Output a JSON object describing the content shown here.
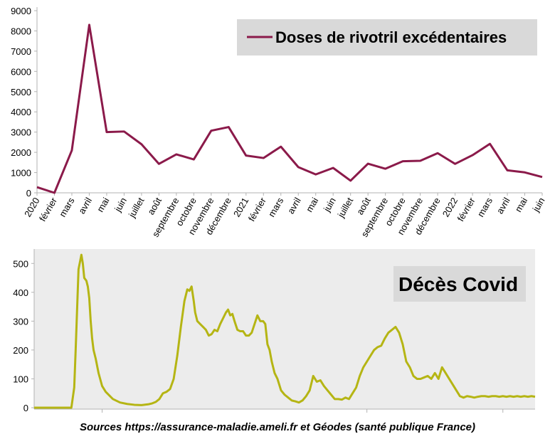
{
  "chart_data": [
    {
      "type": "line",
      "title": "",
      "xlabel": "",
      "ylabel": "",
      "ylim": [
        0,
        9000
      ],
      "yticks": [
        0,
        1000,
        2000,
        3000,
        4000,
        5000,
        6000,
        7000,
        8000,
        9000
      ],
      "grid": false,
      "legend_position": "top-right",
      "categories": [
        "2020",
        "février",
        "mars",
        "avril",
        "mai",
        "juin",
        "juillet",
        "août",
        "septembre",
        "octobre",
        "novembre",
        "décembre",
        "2021",
        "février",
        "mars",
        "avril",
        "mai",
        "juin",
        "juillet",
        "août",
        "septembre",
        "octobre",
        "novembre",
        "décembre",
        "2022",
        "février",
        "mars",
        "avril",
        "mai",
        "juin"
      ],
      "series": [
        {
          "name": "Doses de rivotril excédentaires",
          "color": "#8b1a4a",
          "values": [
            280,
            0,
            2100,
            8300,
            3000,
            3030,
            2400,
            1430,
            1900,
            1650,
            3070,
            3250,
            1840,
            1720,
            2280,
            1270,
            910,
            1230,
            600,
            1440,
            1190,
            1560,
            1580,
            1960,
            1430,
            1860,
            2420,
            1110,
            1010,
            780
          ]
        }
      ]
    },
    {
      "type": "line",
      "title": "",
      "xlabel": "",
      "ylabel": "",
      "ylim": [
        0,
        550
      ],
      "yticks": [
        0,
        100,
        200,
        300,
        400,
        500
      ],
      "grid": false,
      "legend_position": "top-right",
      "series": [
        {
          "name": "Décès Covid",
          "color": "#b5b514",
          "x": [
            0,
            20,
            40,
            52,
            56,
            58,
            62,
            66,
            68,
            70,
            73,
            75,
            77,
            79,
            81,
            83,
            86,
            90,
            95,
            100,
            110,
            120,
            130,
            140,
            150,
            160,
            165,
            170,
            175,
            180,
            185,
            190,
            195,
            200,
            205,
            210,
            214,
            217,
            220,
            223,
            225,
            228,
            232,
            236,
            240,
            244,
            248,
            252,
            256,
            260,
            264,
            268,
            271,
            274,
            277,
            280,
            284,
            288,
            292,
            296,
            300,
            304,
            308,
            312,
            316,
            320,
            323,
            326,
            329,
            332,
            336,
            340,
            345,
            350,
            355,
            360,
            365,
            370,
            375,
            380,
            385,
            390,
            395,
            400,
            405,
            410,
            415,
            420,
            425,
            430,
            435,
            440,
            445,
            450,
            455,
            460,
            465,
            470,
            475,
            480,
            485,
            490,
            495,
            500,
            505,
            510,
            515,
            520,
            525,
            530,
            535,
            540,
            545,
            550,
            555,
            560,
            565,
            570,
            575,
            580,
            585,
            590,
            595,
            600,
            605,
            610,
            615,
            620,
            625,
            630,
            635,
            640,
            645,
            650,
            655,
            660,
            665,
            670,
            675,
            680,
            685,
            690,
            695,
            700
          ],
          "values": [
            0,
            0,
            0,
            0,
            70,
            200,
            480,
            530,
            500,
            450,
            440,
            420,
            380,
            300,
            240,
            200,
            170,
            120,
            75,
            55,
            30,
            18,
            13,
            10,
            9,
            12,
            15,
            20,
            30,
            50,
            55,
            65,
            100,
            180,
            280,
            370,
            410,
            405,
            420,
            370,
            330,
            300,
            290,
            280,
            270,
            250,
            255,
            270,
            265,
            290,
            310,
            330,
            340,
            320,
            325,
            300,
            270,
            265,
            265,
            250,
            250,
            260,
            290,
            320,
            300,
            300,
            290,
            220,
            200,
            160,
            120,
            100,
            60,
            45,
            35,
            25,
            22,
            18,
            25,
            40,
            60,
            110,
            90,
            95,
            75,
            60,
            45,
            30,
            30,
            28,
            35,
            30,
            50,
            70,
            110,
            140,
            160,
            180,
            200,
            210,
            215,
            240,
            260,
            270,
            280,
            260,
            220,
            160,
            140,
            110,
            100,
            100,
            105,
            110,
            100,
            120,
            100,
            140,
            120,
            100,
            80,
            60,
            40,
            35,
            40,
            38,
            35,
            38,
            40,
            40,
            38,
            40,
            40,
            38,
            40,
            38,
            40,
            38,
            40,
            38,
            40,
            38,
            40,
            38
          ]
        }
      ]
    }
  ],
  "source_note": "Sources https://assurance-maladie.ameli.fr et Géodes (santé publique France)"
}
